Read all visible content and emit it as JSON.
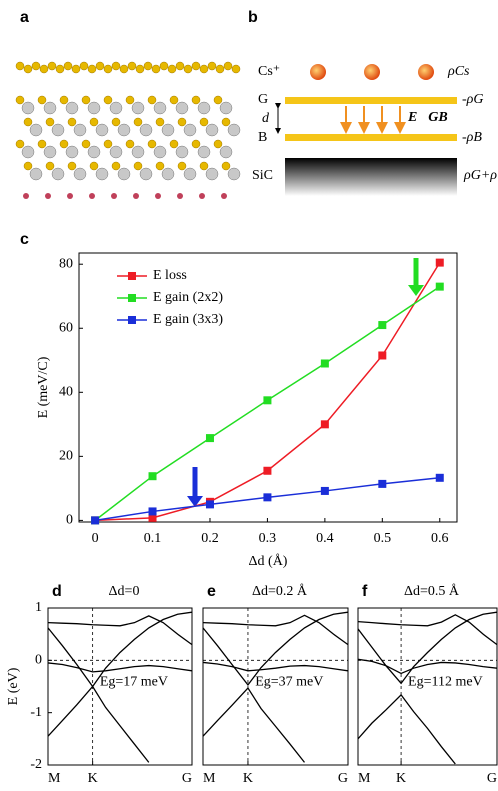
{
  "diagram": {
    "a": {
      "label": "a"
    },
    "b": {
      "label": "b",
      "cs": "Cs⁺",
      "rho_cs": "ρCs",
      "g": "G",
      "rho_g": "-ρG",
      "d": "d",
      "field": "E⃗GB",
      "b": "B",
      "rho_b": "-ρB",
      "sic": "SiC",
      "rho_sum": "ρG+ρ"
    }
  },
  "chart_data": [
    {
      "type": "line",
      "label": "c",
      "ylabel": "E (meV/C)",
      "xlabel": "Δd (Å)",
      "x": [
        0,
        0.1,
        0.2,
        0.3,
        0.4,
        0.5,
        0.6
      ],
      "xlim": [
        -0.028,
        0.63
      ],
      "xticks": [
        0,
        0.1,
        0.2,
        0.3,
        0.4,
        0.5,
        0.6
      ],
      "ylim": [
        -0.5,
        83.5
      ],
      "yticks": [
        0,
        20,
        40,
        60,
        80
      ],
      "markers": true,
      "legend": "top-left",
      "series": [
        {
          "name": "E loss",
          "color": "#ee1c25",
          "values": [
            0,
            0.8,
            5.8,
            15.5,
            30,
            51.5,
            80.5
          ]
        },
        {
          "name": "E gain (2x2)",
          "color": "#22dd22",
          "values": [
            0,
            13.8,
            25.7,
            37.5,
            49,
            61,
            73
          ]
        },
        {
          "name": "E gain (3x3)",
          "color": "#1a2ed8",
          "values": [
            0,
            2.8,
            5,
            7.2,
            9.2,
            11.4,
            13.3
          ]
        }
      ]
    },
    {
      "type": "line",
      "label": "d",
      "title": "Δd=0",
      "annotation": "Eg=17 meV",
      "ylabel": "E (eV)",
      "x": [
        0,
        0.1,
        0.2,
        0.31,
        0.4,
        0.5,
        0.6,
        0.7,
        0.8,
        0.9,
        1
      ],
      "xlim": [
        0,
        1
      ],
      "xticks": [
        {
          "value": 0,
          "label": "M"
        },
        {
          "value": 0.31,
          "label": "K"
        },
        {
          "value": 1,
          "label": "G"
        }
      ],
      "ylim": [
        -2,
        1
      ],
      "yticks": [
        1,
        0,
        -1,
        -2
      ],
      "series": [
        {
          "color": "#000000",
          "values": [
            0.72,
            0.71,
            0.7,
            0.68,
            0.67,
            0.66,
            0.72,
            0.85,
            0.72,
            0.5,
            0.3
          ]
        },
        {
          "color": "#000000",
          "values": [
            0.62,
            0.28,
            -0.08,
            -0.5,
            -0.15,
            0.15,
            0.4,
            0.62,
            0.78,
            0.88,
            0.92
          ]
        },
        {
          "color": "#000000",
          "values": [
            -1.45,
            -1.15,
            -0.85,
            -0.5,
            -0.9,
            -1.25,
            -1.6,
            -1.95,
            null,
            null,
            null
          ]
        },
        {
          "color": "#000000",
          "values": [
            -0.05,
            -0.08,
            -0.14,
            -0.22,
            -0.2,
            -0.16,
            -0.12,
            -0.1,
            -0.12,
            -0.16,
            -0.2
          ]
        }
      ]
    },
    {
      "type": "line",
      "label": "e",
      "title": "Δd=0.2 Å",
      "annotation": "Eg=37 meV",
      "x": [
        0,
        0.1,
        0.2,
        0.31,
        0.4,
        0.5,
        0.6,
        0.7,
        0.8,
        0.9,
        1
      ],
      "xlim": [
        0,
        1
      ],
      "xticks": [
        {
          "value": 0,
          "label": "M"
        },
        {
          "value": 0.31,
          "label": "K"
        },
        {
          "value": 1,
          "label": "G"
        }
      ],
      "ylim": [
        -2,
        1
      ],
      "series": [
        {
          "color": "#000000",
          "values": [
            0.72,
            0.71,
            0.7,
            0.68,
            0.67,
            0.66,
            0.72,
            0.86,
            0.72,
            0.5,
            0.3
          ]
        },
        {
          "color": "#000000",
          "values": [
            0.62,
            0.28,
            -0.08,
            -0.47,
            -0.14,
            0.15,
            0.4,
            0.62,
            0.78,
            0.88,
            0.92
          ]
        },
        {
          "color": "#000000",
          "values": [
            -1.45,
            -1.15,
            -0.86,
            -0.53,
            -0.92,
            -1.26,
            -1.6,
            -1.95,
            null,
            null,
            null
          ]
        },
        {
          "color": "#000000",
          "values": [
            -0.04,
            -0.07,
            -0.12,
            -0.2,
            -0.18,
            -0.15,
            -0.11,
            -0.1,
            -0.12,
            -0.16,
            -0.2
          ]
        }
      ]
    },
    {
      "type": "line",
      "label": "f",
      "title": "Δd=0.5 Å",
      "annotation": "Eg=112 meV",
      "x": [
        0,
        0.1,
        0.2,
        0.31,
        0.4,
        0.5,
        0.6,
        0.7,
        0.8,
        0.9,
        1
      ],
      "xlim": [
        0,
        1
      ],
      "xticks": [
        {
          "value": 0,
          "label": "M"
        },
        {
          "value": 0.31,
          "label": "K"
        },
        {
          "value": 1,
          "label": "G"
        }
      ],
      "ylim": [
        -2,
        1
      ],
      "series": [
        {
          "color": "#000000",
          "values": [
            0.74,
            0.72,
            0.7,
            0.68,
            0.67,
            0.66,
            0.73,
            0.87,
            0.73,
            0.5,
            0.3
          ]
        },
        {
          "color": "#000000",
          "values": [
            0.6,
            0.25,
            -0.1,
            -0.44,
            -0.12,
            0.15,
            0.4,
            0.62,
            0.78,
            0.88,
            0.92
          ]
        },
        {
          "color": "#000000",
          "values": [
            -1.5,
            -1.2,
            -0.95,
            -0.66,
            -0.98,
            -1.3,
            -1.65,
            -1.98,
            null,
            null,
            null
          ]
        },
        {
          "color": "#000000",
          "values": [
            0.02,
            -0.02,
            -0.1,
            -0.25,
            -0.15,
            -0.08,
            -0.04,
            -0.05,
            -0.08,
            -0.12,
            -0.15
          ]
        }
      ]
    }
  ]
}
